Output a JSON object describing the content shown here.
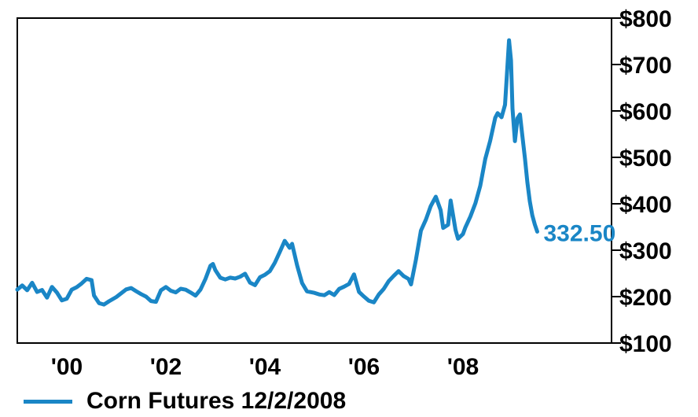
{
  "chart_data": {
    "type": "line",
    "series": [
      {
        "name": "Corn Futures 12/2/2008",
        "color": "#1a86c6",
        "points": [
          [
            1999.0,
            215
          ],
          [
            1999.1,
            222
          ],
          [
            1999.2,
            210
          ],
          [
            1999.3,
            225
          ],
          [
            1999.4,
            205
          ],
          [
            1999.5,
            210
          ],
          [
            1999.6,
            195
          ],
          [
            1999.7,
            220
          ],
          [
            1999.8,
            210
          ],
          [
            1999.9,
            195
          ],
          [
            2000.0,
            200
          ],
          [
            2000.1,
            220
          ],
          [
            2000.2,
            225
          ],
          [
            2000.3,
            232
          ],
          [
            2000.4,
            240
          ],
          [
            2000.5,
            235
          ],
          [
            2000.55,
            200
          ],
          [
            2000.65,
            182
          ],
          [
            2000.75,
            178
          ],
          [
            2000.85,
            185
          ],
          [
            2001.0,
            195
          ],
          [
            2001.1,
            205
          ],
          [
            2001.2,
            215
          ],
          [
            2001.3,
            220
          ],
          [
            2001.4,
            215
          ],
          [
            2001.5,
            210
          ],
          [
            2001.6,
            205
          ],
          [
            2001.7,
            195
          ],
          [
            2001.8,
            192
          ],
          [
            2001.9,
            215
          ],
          [
            2002.0,
            220
          ],
          [
            2002.1,
            210
          ],
          [
            2002.2,
            205
          ],
          [
            2002.3,
            212
          ],
          [
            2002.4,
            210
          ],
          [
            2002.5,
            205
          ],
          [
            2002.6,
            200
          ],
          [
            2002.7,
            215
          ],
          [
            2002.8,
            240
          ],
          [
            2002.9,
            270
          ],
          [
            2002.95,
            275
          ],
          [
            2003.0,
            262
          ],
          [
            2003.1,
            245
          ],
          [
            2003.2,
            240
          ],
          [
            2003.3,
            242
          ],
          [
            2003.4,
            238
          ],
          [
            2003.5,
            240
          ],
          [
            2003.6,
            245
          ],
          [
            2003.7,
            225
          ],
          [
            2003.8,
            220
          ],
          [
            2003.9,
            238
          ],
          [
            2004.0,
            245
          ],
          [
            2004.1,
            255
          ],
          [
            2004.2,
            275
          ],
          [
            2004.3,
            300
          ],
          [
            2004.4,
            325
          ],
          [
            2004.5,
            310
          ],
          [
            2004.55,
            318
          ],
          [
            2004.65,
            270
          ],
          [
            2004.75,
            230
          ],
          [
            2004.85,
            210
          ],
          [
            2005.0,
            205
          ],
          [
            2005.1,
            200
          ],
          [
            2005.2,
            198
          ],
          [
            2005.3,
            205
          ],
          [
            2005.4,
            200
          ],
          [
            2005.5,
            215
          ],
          [
            2005.6,
            222
          ],
          [
            2005.7,
            230
          ],
          [
            2005.8,
            252
          ],
          [
            2005.9,
            215
          ],
          [
            2006.0,
            205
          ],
          [
            2006.1,
            195
          ],
          [
            2006.2,
            190
          ],
          [
            2006.3,
            205
          ],
          [
            2006.4,
            215
          ],
          [
            2006.5,
            230
          ],
          [
            2006.6,
            240
          ],
          [
            2006.7,
            250
          ],
          [
            2006.8,
            240
          ],
          [
            2006.9,
            235
          ],
          [
            2006.95,
            225
          ],
          [
            2007.05,
            280
          ],
          [
            2007.15,
            345
          ],
          [
            2007.25,
            370
          ],
          [
            2007.35,
            400
          ],
          [
            2007.45,
            420
          ],
          [
            2007.55,
            390
          ],
          [
            2007.6,
            350
          ],
          [
            2007.7,
            355
          ],
          [
            2007.75,
            405
          ],
          [
            2007.85,
            340
          ],
          [
            2007.9,
            320
          ],
          [
            2008.0,
            330
          ],
          [
            2008.05,
            345
          ],
          [
            2008.15,
            370
          ],
          [
            2008.25,
            400
          ],
          [
            2008.35,
            440
          ],
          [
            2008.45,
            500
          ],
          [
            2008.55,
            540
          ],
          [
            2008.65,
            590
          ],
          [
            2008.7,
            600
          ],
          [
            2008.78,
            590
          ],
          [
            2008.85,
            615
          ],
          [
            2008.9,
            700
          ],
          [
            2008.93,
            750
          ],
          [
            2008.97,
            705
          ],
          [
            2009.0,
            600
          ],
          [
            2009.05,
            530
          ],
          [
            2009.1,
            580
          ],
          [
            2009.15,
            590
          ],
          [
            2009.2,
            545
          ],
          [
            2009.25,
            500
          ],
          [
            2009.3,
            450
          ],
          [
            2009.35,
            410
          ],
          [
            2009.4,
            380
          ],
          [
            2009.45,
            360
          ],
          [
            2009.5,
            340
          ]
        ],
        "end_label": "332.50"
      }
    ],
    "x_ticks": [
      {
        "value": 2000,
        "label": "'00"
      },
      {
        "value": 2002,
        "label": "'02"
      },
      {
        "value": 2004,
        "label": "'04"
      },
      {
        "value": 2006,
        "label": "'06"
      },
      {
        "value": 2008,
        "label": "'08"
      }
    ],
    "y_ticks": [
      {
        "value": 100,
        "label": "$100"
      },
      {
        "value": 200,
        "label": "$200"
      },
      {
        "value": 300,
        "label": "$300"
      },
      {
        "value": 400,
        "label": "$400"
      },
      {
        "value": 500,
        "label": "$500"
      },
      {
        "value": 600,
        "label": "$600"
      },
      {
        "value": 700,
        "label": "$700"
      },
      {
        "value": 800,
        "label": "$800"
      }
    ],
    "xlim": [
      1999.0,
      2011.0
    ],
    "ylim": [
      100,
      800
    ],
    "grid": false,
    "legend_position": "bottom-left",
    "y_axis_side": "right"
  }
}
